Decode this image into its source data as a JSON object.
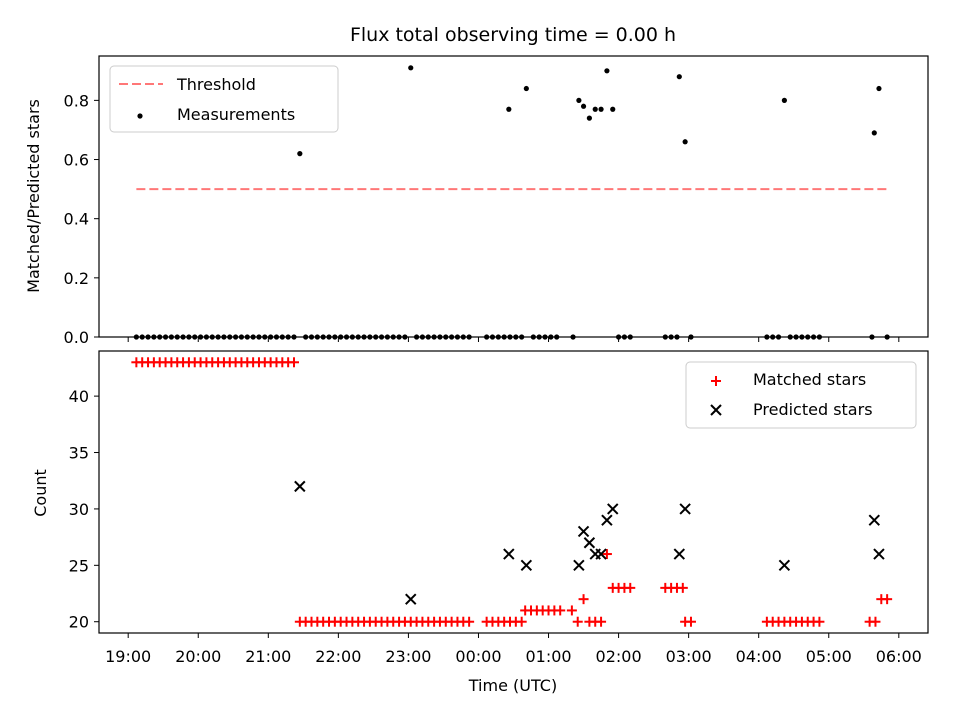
{
  "chart_data": [
    {
      "type": "scatter",
      "title": "Flux total observing time = 0.00 h",
      "xlabel": "",
      "ylabel": "Matched/Predicted stars",
      "xlim": [
        "18:35",
        "06:25"
      ],
      "ylim": [
        0,
        0.95
      ],
      "yticks": [
        "0.0",
        "0.2",
        "0.4",
        "0.6",
        "0.8"
      ],
      "legend_position": "top-left",
      "legend": [
        "Threshold",
        "Measurements"
      ],
      "threshold": {
        "name": "Threshold",
        "value": 0.5,
        "x_start": "19:07",
        "x_end": "05:50",
        "color": "#ff7777"
      },
      "series": [
        {
          "name": "Measurements",
          "marker": "dot",
          "color": "#000000",
          "points": [
            [
              "19:07",
              0
            ],
            [
              "19:12",
              0
            ],
            [
              "19:17",
              0
            ],
            [
              "19:22",
              0
            ],
            [
              "19:27",
              0
            ],
            [
              "19:32",
              0
            ],
            [
              "19:37",
              0
            ],
            [
              "19:42",
              0
            ],
            [
              "19:47",
              0
            ],
            [
              "19:52",
              0
            ],
            [
              "19:57",
              0
            ],
            [
              "20:02",
              0
            ],
            [
              "20:07",
              0
            ],
            [
              "20:12",
              0
            ],
            [
              "20:17",
              0
            ],
            [
              "20:22",
              0
            ],
            [
              "20:27",
              0
            ],
            [
              "20:32",
              0
            ],
            [
              "20:37",
              0
            ],
            [
              "20:42",
              0
            ],
            [
              "20:47",
              0
            ],
            [
              "20:52",
              0
            ],
            [
              "20:57",
              0
            ],
            [
              "21:02",
              0
            ],
            [
              "21:07",
              0
            ],
            [
              "21:12",
              0
            ],
            [
              "21:17",
              0
            ],
            [
              "21:22",
              0
            ],
            [
              "21:27",
              0.62
            ],
            [
              "21:32",
              0
            ],
            [
              "21:37",
              0
            ],
            [
              "21:42",
              0
            ],
            [
              "21:47",
              0
            ],
            [
              "21:52",
              0
            ],
            [
              "21:57",
              0
            ],
            [
              "22:02",
              0
            ],
            [
              "22:07",
              0
            ],
            [
              "22:12",
              0
            ],
            [
              "22:17",
              0
            ],
            [
              "22:22",
              0
            ],
            [
              "22:27",
              0
            ],
            [
              "22:32",
              0
            ],
            [
              "22:37",
              0
            ],
            [
              "22:42",
              0
            ],
            [
              "22:47",
              0
            ],
            [
              "22:52",
              0
            ],
            [
              "22:57",
              0
            ],
            [
              "23:02",
              0.91
            ],
            [
              "23:07",
              0
            ],
            [
              "23:12",
              0
            ],
            [
              "23:17",
              0
            ],
            [
              "23:22",
              0
            ],
            [
              "23:27",
              0
            ],
            [
              "23:32",
              0
            ],
            [
              "23:37",
              0
            ],
            [
              "23:42",
              0
            ],
            [
              "23:47",
              0
            ],
            [
              "23:52",
              0
            ],
            [
              "00:07",
              0
            ],
            [
              "00:12",
              0
            ],
            [
              "00:17",
              0
            ],
            [
              "00:22",
              0
            ],
            [
              "00:27",
              0
            ],
            [
              "00:26",
              0.77
            ],
            [
              "00:32",
              0
            ],
            [
              "00:37",
              0
            ],
            [
              "00:41",
              0.84
            ],
            [
              "00:47",
              0
            ],
            [
              "00:52",
              0
            ],
            [
              "00:57",
              0
            ],
            [
              "01:02",
              0
            ],
            [
              "01:07",
              0
            ],
            [
              "01:21",
              0
            ],
            [
              "01:26",
              0.8
            ],
            [
              "01:30",
              0.78
            ],
            [
              "01:35",
              0.74
            ],
            [
              "01:40",
              0.77
            ],
            [
              "01:45",
              0.77
            ],
            [
              "01:50",
              0.9
            ],
            [
              "01:55",
              0.77
            ],
            [
              "02:00",
              0
            ],
            [
              "02:05",
              0
            ],
            [
              "02:10",
              0
            ],
            [
              "02:40",
              0
            ],
            [
              "02:45",
              0
            ],
            [
              "02:50",
              0
            ],
            [
              "02:52",
              0.88
            ],
            [
              "02:57",
              0.66
            ],
            [
              "03:02",
              0
            ],
            [
              "04:07",
              0
            ],
            [
              "04:12",
              0
            ],
            [
              "04:17",
              0
            ],
            [
              "04:22",
              0.8
            ],
            [
              "04:27",
              0
            ],
            [
              "04:32",
              0
            ],
            [
              "04:37",
              0
            ],
            [
              "04:42",
              0
            ],
            [
              "04:47",
              0
            ],
            [
              "04:52",
              0
            ],
            [
              "05:37",
              0
            ],
            [
              "05:39",
              0.69
            ],
            [
              "05:43",
              0.84
            ],
            [
              "05:50",
              0
            ]
          ]
        }
      ]
    },
    {
      "type": "scatter",
      "title": "",
      "xlabel": "Time (UTC)",
      "ylabel": "Count",
      "xlim": [
        "18:35",
        "06:25"
      ],
      "ylim": [
        19,
        44
      ],
      "xticks": [
        "19:00",
        "20:00",
        "21:00",
        "22:00",
        "23:00",
        "00:00",
        "01:00",
        "02:00",
        "03:00",
        "04:00",
        "05:00",
        "06:00"
      ],
      "yticks": [
        "20",
        "25",
        "30",
        "35",
        "40"
      ],
      "legend_position": "top-right",
      "legend": [
        "Matched stars",
        "Predicted stars"
      ],
      "series": [
        {
          "name": "Matched stars",
          "marker": "plus",
          "color": "#ff0000",
          "points": [
            [
              "19:07",
              43
            ],
            [
              "19:12",
              43
            ],
            [
              "19:17",
              43
            ],
            [
              "19:22",
              43
            ],
            [
              "19:27",
              43
            ],
            [
              "19:32",
              43
            ],
            [
              "19:37",
              43
            ],
            [
              "19:42",
              43
            ],
            [
              "19:47",
              43
            ],
            [
              "19:52",
              43
            ],
            [
              "19:57",
              43
            ],
            [
              "20:02",
              43
            ],
            [
              "20:07",
              43
            ],
            [
              "20:12",
              43
            ],
            [
              "20:17",
              43
            ],
            [
              "20:22",
              43
            ],
            [
              "20:27",
              43
            ],
            [
              "20:32",
              43
            ],
            [
              "20:37",
              43
            ],
            [
              "20:42",
              43
            ],
            [
              "20:47",
              43
            ],
            [
              "20:52",
              43
            ],
            [
              "20:57",
              43
            ],
            [
              "21:02",
              43
            ],
            [
              "21:07",
              43
            ],
            [
              "21:12",
              43
            ],
            [
              "21:17",
              43
            ],
            [
              "21:22",
              43
            ],
            [
              "21:27",
              20
            ],
            [
              "21:32",
              20
            ],
            [
              "21:37",
              20
            ],
            [
              "21:42",
              20
            ],
            [
              "21:47",
              20
            ],
            [
              "21:52",
              20
            ],
            [
              "21:57",
              20
            ],
            [
              "22:02",
              20
            ],
            [
              "22:07",
              20
            ],
            [
              "22:12",
              20
            ],
            [
              "22:17",
              20
            ],
            [
              "22:22",
              20
            ],
            [
              "22:27",
              20
            ],
            [
              "22:32",
              20
            ],
            [
              "22:37",
              20
            ],
            [
              "22:42",
              20
            ],
            [
              "22:47",
              20
            ],
            [
              "22:52",
              20
            ],
            [
              "22:57",
              20
            ],
            [
              "23:02",
              20
            ],
            [
              "23:07",
              20
            ],
            [
              "23:12",
              20
            ],
            [
              "23:17",
              20
            ],
            [
              "23:22",
              20
            ],
            [
              "23:27",
              20
            ],
            [
              "23:32",
              20
            ],
            [
              "23:37",
              20
            ],
            [
              "23:42",
              20
            ],
            [
              "23:47",
              20
            ],
            [
              "23:52",
              20
            ],
            [
              "00:07",
              20
            ],
            [
              "00:12",
              20
            ],
            [
              "00:17",
              20
            ],
            [
              "00:22",
              20
            ],
            [
              "00:27",
              20
            ],
            [
              "00:32",
              20
            ],
            [
              "00:37",
              20
            ],
            [
              "00:40",
              21
            ],
            [
              "00:45",
              21
            ],
            [
              "00:50",
              21
            ],
            [
              "00:55",
              21
            ],
            [
              "01:00",
              21
            ],
            [
              "01:05",
              21
            ],
            [
              "01:10",
              21
            ],
            [
              "01:20",
              21
            ],
            [
              "01:25",
              20
            ],
            [
              "01:30",
              22
            ],
            [
              "01:35",
              20
            ],
            [
              "01:40",
              20
            ],
            [
              "01:45",
              20
            ],
            [
              "01:50",
              26
            ],
            [
              "01:55",
              23
            ],
            [
              "02:00",
              23
            ],
            [
              "02:05",
              23
            ],
            [
              "02:10",
              23
            ],
            [
              "02:40",
              23
            ],
            [
              "02:45",
              23
            ],
            [
              "02:50",
              23
            ],
            [
              "02:55",
              23
            ],
            [
              "02:57",
              20
            ],
            [
              "03:02",
              20
            ],
            [
              "04:07",
              20
            ],
            [
              "04:12",
              20
            ],
            [
              "04:17",
              20
            ],
            [
              "04:22",
              20
            ],
            [
              "04:27",
              20
            ],
            [
              "04:32",
              20
            ],
            [
              "04:37",
              20
            ],
            [
              "04:42",
              20
            ],
            [
              "04:47",
              20
            ],
            [
              "04:52",
              20
            ],
            [
              "05:35",
              20
            ],
            [
              "05:40",
              20
            ],
            [
              "05:45",
              22
            ],
            [
              "05:50",
              22
            ]
          ]
        },
        {
          "name": "Predicted stars",
          "marker": "x",
          "color": "#000000",
          "points": [
            [
              "21:27",
              32
            ],
            [
              "23:02",
              22
            ],
            [
              "00:26",
              26
            ],
            [
              "00:41",
              25
            ],
            [
              "01:26",
              25
            ],
            [
              "01:30",
              28
            ],
            [
              "01:35",
              27
            ],
            [
              "01:40",
              26
            ],
            [
              "01:45",
              26
            ],
            [
              "01:50",
              29
            ],
            [
              "01:55",
              30
            ],
            [
              "02:52",
              26
            ],
            [
              "02:57",
              30
            ],
            [
              "04:22",
              25
            ],
            [
              "05:39",
              29
            ],
            [
              "05:43",
              26
            ]
          ]
        }
      ]
    }
  ]
}
